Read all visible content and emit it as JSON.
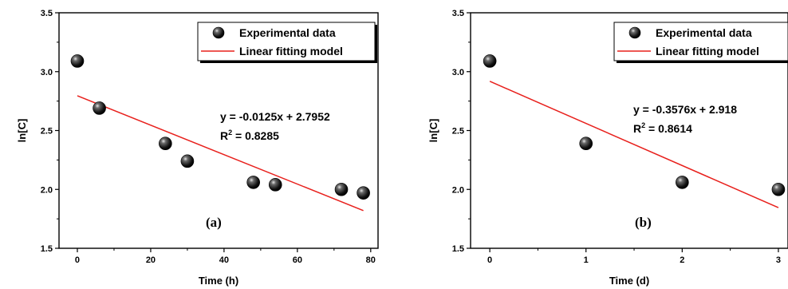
{
  "chart_data": [
    {
      "type": "scatter",
      "panel_label": "(a)",
      "xlabel": "Time (h)",
      "ylabel": "ln[C]",
      "xlim": [
        -5,
        82
      ],
      "ylim": [
        1.5,
        3.5
      ],
      "xticks": [
        0,
        20,
        40,
        60,
        80
      ],
      "yticks": [
        1.5,
        2.0,
        2.5,
        3.0,
        3.5
      ],
      "xtick_labels": [
        "0",
        "20",
        "40",
        "60",
        "80"
      ],
      "ytick_labels": [
        "1.5",
        "2.0",
        "2.5",
        "3.0",
        "3.5"
      ],
      "grid": false,
      "legend_position": "top-right",
      "legend": [
        "Experimental data",
        "Linear fitting model"
      ],
      "series": [
        {
          "name": "Experimental data",
          "kind": "points",
          "x": [
            0,
            6,
            24,
            30,
            48,
            54,
            72,
            78
          ],
          "y": [
            3.09,
            2.69,
            2.39,
            2.24,
            2.06,
            2.04,
            2.0,
            1.97
          ]
        },
        {
          "name": "Linear fitting model",
          "kind": "line",
          "slope": -0.0125,
          "intercept": 2.7952,
          "x_range": [
            0,
            78
          ],
          "color": "#e8201c"
        }
      ],
      "annotations": {
        "equation": "y = -0.0125x + 2.7952",
        "r2_prefix": "R",
        "r2_sup": "2",
        "r2_value": " = 0.8285"
      }
    },
    {
      "type": "scatter",
      "panel_label": "(b)",
      "xlabel": "Time (d)",
      "ylabel": "ln[C]",
      "xlim": [
        -0.2,
        3.1
      ],
      "ylim": [
        1.5,
        3.5
      ],
      "xticks": [
        0,
        1,
        2,
        3
      ],
      "yticks": [
        1.5,
        2.0,
        2.5,
        3.0,
        3.5
      ],
      "xtick_labels": [
        "0",
        "1",
        "2",
        "3"
      ],
      "ytick_labels": [
        "1.5",
        "2.0",
        "2.5",
        "3.0",
        "3.5"
      ],
      "grid": false,
      "legend_position": "top-right",
      "legend": [
        "Experimental data",
        "Linear fitting model"
      ],
      "series": [
        {
          "name": "Experimental data",
          "kind": "points",
          "x": [
            0,
            1,
            2,
            3
          ],
          "y": [
            3.09,
            2.39,
            2.06,
            2.0
          ]
        },
        {
          "name": "Linear fitting model",
          "kind": "line",
          "slope": -0.3576,
          "intercept": 2.918,
          "x_range": [
            0,
            3
          ],
          "color": "#e8201c"
        }
      ],
      "annotations": {
        "equation": "y = -0.3576x + 2.918",
        "r2_prefix": "R",
        "r2_sup": "2",
        "r2_value": " = 0.8614"
      }
    }
  ]
}
